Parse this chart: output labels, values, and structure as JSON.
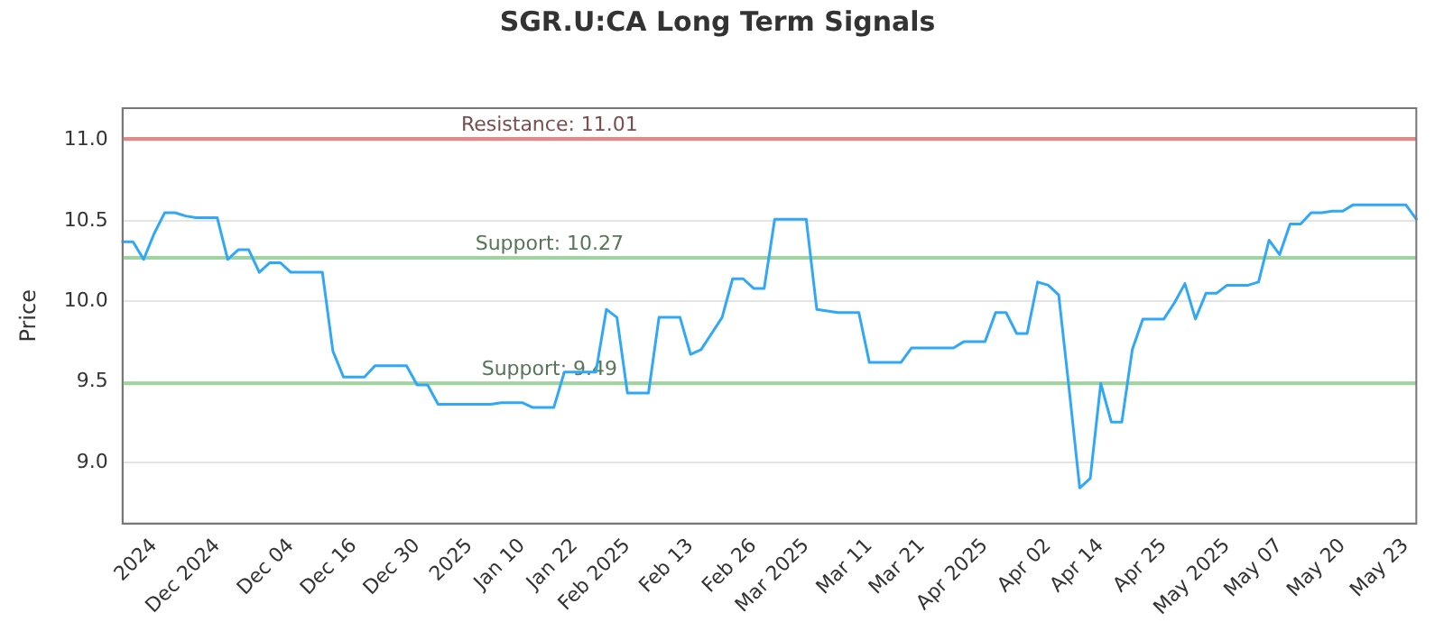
{
  "chart_data": {
    "type": "line",
    "title": "SGR.U:CA Long Term Signals",
    "ylabel": "Price",
    "categories": [
      null,
      null,
      null,
      "2024",
      null,
      null,
      null,
      null,
      null,
      "Dec 2024",
      null,
      null,
      null,
      null,
      null,
      null,
      "Dec 04",
      null,
      null,
      null,
      null,
      null,
      "Dec 16",
      null,
      null,
      null,
      null,
      null,
      "Dec 30",
      null,
      null,
      null,
      null,
      "2025",
      null,
      null,
      null,
      null,
      "Jan 10",
      null,
      null,
      null,
      null,
      "Jan 22",
      null,
      null,
      null,
      null,
      "Feb 2025",
      null,
      null,
      null,
      null,
      null,
      "Feb 13",
      null,
      null,
      null,
      null,
      null,
      "Feb 26",
      null,
      null,
      null,
      null,
      "Mar 2025",
      null,
      null,
      null,
      null,
      null,
      "Mar 11",
      null,
      null,
      null,
      null,
      "Mar 21",
      null,
      null,
      null,
      null,
      null,
      "Apr 2025",
      null,
      null,
      null,
      null,
      null,
      "Apr 02",
      null,
      null,
      null,
      null,
      "Apr 14",
      null,
      null,
      null,
      null,
      null,
      "Apr 25",
      null,
      null,
      null,
      null,
      null,
      "May 2025",
      null,
      null,
      null,
      null,
      "May 07",
      null,
      null,
      null,
      null,
      null,
      "May 20",
      null,
      null,
      null,
      null,
      null,
      "May 23",
      null
    ],
    "series": [
      {
        "color": "#30a8f8",
        "values": [
          10.37,
          10.37,
          10.26,
          10.42,
          10.55,
          10.55,
          10.53,
          10.52,
          10.52,
          10.52,
          10.26,
          10.32,
          10.32,
          10.18,
          10.24,
          10.24,
          10.18,
          10.18,
          10.18,
          10.18,
          9.69,
          9.53,
          9.53,
          9.53,
          9.6,
          9.6,
          9.6,
          9.6,
          9.48,
          9.48,
          9.36,
          9.36,
          9.36,
          9.36,
          9.36,
          9.36,
          9.37,
          9.37,
          9.37,
          9.34,
          9.34,
          9.34,
          9.56,
          9.56,
          9.56,
          9.56,
          9.95,
          9.9,
          9.43,
          9.43,
          9.43,
          9.9,
          9.9,
          9.9,
          9.67,
          9.7,
          9.8,
          9.9,
          10.14,
          10.14,
          10.08,
          10.08,
          10.51,
          10.51,
          10.51,
          10.51,
          9.95,
          9.94,
          9.93,
          9.93,
          9.93,
          9.62,
          9.62,
          9.62,
          9.62,
          9.71,
          9.71,
          9.71,
          9.71,
          9.71,
          9.75,
          9.75,
          9.75,
          9.93,
          9.93,
          9.8,
          9.8,
          10.12,
          10.1,
          10.04,
          9.45,
          8.84,
          8.9,
          9.49,
          9.25,
          9.25,
          9.7,
          9.89,
          9.89,
          9.89,
          9.99,
          10.11,
          9.89,
          10.05,
          10.05,
          10.1,
          10.1,
          10.1,
          10.12,
          10.38,
          10.29,
          10.48,
          10.48,
          10.55,
          10.55,
          10.56,
          10.56,
          10.6,
          10.6,
          10.6,
          10.6,
          10.6,
          10.6,
          10.51
        ]
      }
    ],
    "ylim": [
      8.62,
      11.2
    ],
    "yticks": [
      {
        "value": 9.0,
        "label": "9.0"
      },
      {
        "value": 9.5,
        "label": "9.5"
      },
      {
        "value": 10.0,
        "label": "10.0"
      },
      {
        "value": 10.5,
        "label": "10.5"
      },
      {
        "value": 11.0,
        "label": "11.0"
      }
    ],
    "ref_lines": [
      {
        "axis": "y",
        "value": 11.01,
        "label": "Resistance: 11.01",
        "color": "#e08a8a"
      },
      {
        "axis": "y",
        "value": 10.27,
        "label": "Support: 10.27",
        "color": "#9fd49f"
      },
      {
        "axis": "y",
        "value": 9.49,
        "label": "Support: 9.49",
        "color": "#9fd49f"
      }
    ],
    "grid": "y",
    "legend": false,
    "marker": "none",
    "line_style": "solid"
  }
}
